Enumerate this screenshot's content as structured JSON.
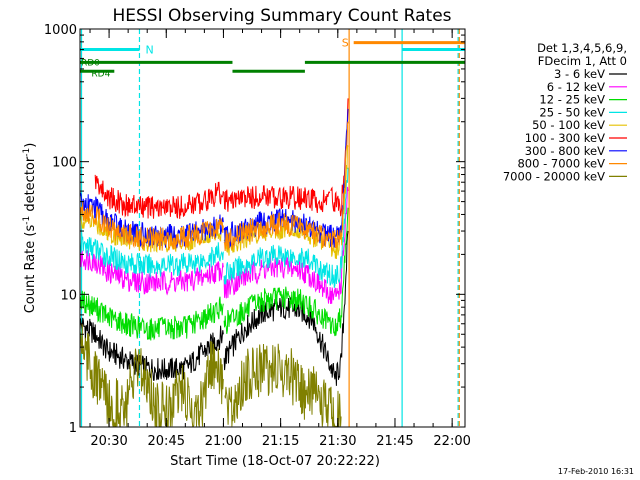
{
  "chart_data": {
    "type": "line",
    "title": "HESSI Observing Summary Count Rates",
    "xlabel": "Start Time (18-Oct-07 20:22:22)",
    "ylabel": "Count Rate (s⁻¹ detector⁻¹)",
    "ylabel_parts": {
      "pre": "Count Rate (s",
      "sup1": "-1",
      "mid": " detector",
      "sup2": "-1",
      "post": ")"
    },
    "x_tick_labels": [
      "20:30",
      "20:45",
      "21:00",
      "21:15",
      "21:30",
      "21:45",
      "22:00"
    ],
    "x_tick_minutes": [
      7.63,
      22.63,
      37.63,
      52.63,
      67.63,
      82.63,
      97.63
    ],
    "xlim_minutes": [
      0,
      101
    ],
    "y_scale": "log",
    "ylim": [
      1,
      1000
    ],
    "y_tick_labels": [
      "1",
      "10",
      "100",
      "1000"
    ],
    "y_tick_values": [
      1,
      10,
      100,
      1000
    ],
    "legend_header": [
      "Det 1,3,4,5,6,9,",
      "FDecim 1, Att 0"
    ],
    "series": [
      {
        "name": "3 - 6 keV",
        "color": "#000000",
        "segments": [
          [
            [
              0,
              6
            ],
            [
              4,
              5
            ],
            [
              7,
              3.8
            ],
            [
              12,
              3.2
            ],
            [
              17,
              2.8
            ],
            [
              22,
              2.7
            ],
            [
              28,
              2.8
            ],
            [
              32,
              3.6
            ],
            [
              36,
              4.5
            ],
            [
              37.6,
              5
            ]
          ],
          [
            [
              37.8,
              3.2
            ],
            [
              43,
              5.5
            ],
            [
              48,
              7.2
            ],
            [
              53,
              8
            ],
            [
              58,
              7.5
            ],
            [
              61,
              6.5
            ],
            [
              63.5,
              4.2
            ],
            [
              67,
              2.3
            ],
            [
              68.5,
              3
            ],
            [
              69.5,
              10
            ],
            [
              70.3,
              30
            ]
          ]
        ]
      },
      {
        "name": "6 - 12 keV",
        "color": "#ff00ff",
        "segments": [
          [
            [
              0,
              19
            ],
            [
              4,
              18
            ],
            [
              7,
              15
            ],
            [
              12,
              13
            ],
            [
              17,
              12.3
            ],
            [
              22,
              12.3
            ],
            [
              28,
              12.5
            ],
            [
              32,
              13.5
            ],
            [
              36,
              15
            ],
            [
              37.6,
              16
            ]
          ],
          [
            [
              37.8,
              11
            ],
            [
              43,
              13.5
            ],
            [
              48,
              15.5
            ],
            [
              53,
              16.2
            ],
            [
              58,
              15.3
            ],
            [
              61,
              13.5
            ],
            [
              63.5,
              11
            ],
            [
              67,
              9.5
            ],
            [
              68.5,
              12
            ],
            [
              69.5,
              30
            ],
            [
              70.3,
              60
            ]
          ]
        ]
      },
      {
        "name": "12 - 25 keV",
        "color": "#00dd00",
        "segments": [
          [
            [
              0,
              9
            ],
            [
              4,
              8
            ],
            [
              7,
              6.8
            ],
            [
              12,
              6
            ],
            [
              17,
              5.5
            ],
            [
              22,
              5.5
            ],
            [
              28,
              5.7
            ],
            [
              32,
              6.5
            ],
            [
              36,
              7.6
            ],
            [
              37.6,
              8.5
            ]
          ],
          [
            [
              37.8,
              6
            ],
            [
              43,
              7.5
            ],
            [
              48,
              9
            ],
            [
              53,
              9.5
            ],
            [
              58,
              9
            ],
            [
              61,
              7.8
            ],
            [
              63.5,
              6.5
            ],
            [
              67,
              5.5
            ],
            [
              68.5,
              7
            ],
            [
              69.5,
              20
            ],
            [
              70.3,
              45
            ]
          ]
        ]
      },
      {
        "name": "25 - 50 keV",
        "color": "#00e5e5",
        "segments": [
          [
            [
              0,
              24
            ],
            [
              4,
              22
            ],
            [
              7,
              19.5
            ],
            [
              12,
              17.5
            ],
            [
              17,
              16.5
            ],
            [
              22,
              16.5
            ],
            [
              28,
              17
            ],
            [
              32,
              18
            ],
            [
              36,
              20
            ],
            [
              37.6,
              21
            ]
          ],
          [
            [
              37.8,
              14
            ],
            [
              43,
              16.5
            ],
            [
              48,
              19
            ],
            [
              53,
              19.8
            ],
            [
              58,
              19
            ],
            [
              61,
              17.5
            ],
            [
              63.5,
              15
            ],
            [
              67,
              13.5
            ],
            [
              68.5,
              16
            ],
            [
              69.5,
              40
            ],
            [
              70.3,
              90
            ]
          ]
        ]
      },
      {
        "name": "50 - 100 keV",
        "color": "#e5c000",
        "segments": [
          [
            [
              0,
              37
            ],
            [
              4,
              35
            ],
            [
              7,
              30
            ],
            [
              12,
              27
            ],
            [
              17,
              25.5
            ],
            [
              22,
              25.5
            ],
            [
              28,
              26
            ],
            [
              32,
              27.5
            ],
            [
              36,
              30
            ],
            [
              37.6,
              31
            ]
          ],
          [
            [
              37.8,
              23
            ],
            [
              43,
              27
            ],
            [
              48,
              31
            ],
            [
              53,
              32
            ],
            [
              58,
              31
            ],
            [
              61,
              28
            ],
            [
              63.5,
              25
            ],
            [
              67,
              22
            ],
            [
              68.5,
              25
            ],
            [
              69.5,
              60
            ],
            [
              70.3,
              130
            ]
          ]
        ]
      },
      {
        "name": "100 - 300 keV",
        "color": "#ff0000",
        "segments": [
          [
            [
              4,
              72
            ],
            [
              7,
              55
            ],
            [
              12,
              47
            ],
            [
              17,
              45
            ],
            [
              22,
              44.5
            ],
            [
              28,
              46
            ],
            [
              32,
              50
            ],
            [
              36,
              57
            ],
            [
              37.6,
              60
            ]
          ],
          [
            [
              37.8,
              50
            ],
            [
              43,
              53
            ],
            [
              48,
              55
            ],
            [
              53,
              54
            ],
            [
              58,
              53
            ],
            [
              61,
              51
            ],
            [
              63.5,
              49
            ],
            [
              65.5,
              58
            ]
          ],
          [
            [
              65.8,
              55
            ],
            [
              67,
              50
            ],
            [
              68.5,
              47
            ],
            [
              69.5,
              80
            ],
            [
              70.3,
              300
            ]
          ]
        ]
      },
      {
        "name": "300 - 800 keV",
        "color": "#0000ff",
        "segments": [
          [
            [
              0,
              50
            ],
            [
              4,
              45
            ],
            [
              7,
              36
            ],
            [
              12,
              30
            ],
            [
              17,
              28
            ],
            [
              22,
              27.5
            ],
            [
              28,
              28
            ],
            [
              32,
              30.5
            ],
            [
              36,
              33
            ],
            [
              37.6,
              35
            ]
          ],
          [
            [
              37.8,
              27
            ],
            [
              43,
              31
            ],
            [
              48,
              35
            ],
            [
              53,
              37
            ],
            [
              58,
              35
            ],
            [
              61,
              32
            ],
            [
              63.5,
              29
            ],
            [
              67,
              27
            ],
            [
              68.5,
              30
            ],
            [
              69.5,
              80
            ],
            [
              70.3,
              250
            ]
          ]
        ]
      },
      {
        "name": "800 - 7000 keV",
        "color": "#ff8800",
        "segments": [
          [
            [
              0,
              44
            ],
            [
              4,
              40
            ],
            [
              7,
              33
            ],
            [
              12,
              28
            ],
            [
              17,
              26.5
            ],
            [
              22,
              26
            ],
            [
              28,
              27
            ],
            [
              32,
              29
            ],
            [
              36,
              32
            ],
            [
              37.6,
              33
            ]
          ],
          [
            [
              37.8,
              25
            ],
            [
              43,
              29
            ],
            [
              48,
              32.5
            ],
            [
              53,
              34
            ],
            [
              58,
              32.5
            ],
            [
              61,
              29.5
            ],
            [
              63.5,
              27
            ],
            [
              67,
              25.5
            ],
            [
              68.5,
              28
            ],
            [
              69.5,
              70
            ],
            [
              70.3,
              200
            ]
          ]
        ]
      },
      {
        "name": "7000 - 20000 keV",
        "color": "#808000",
        "segments": [
          [
            [
              0,
              5.2
            ],
            [
              2,
              3.5
            ],
            [
              4,
              2.3
            ],
            [
              6,
              2
            ],
            [
              8,
              1.3
            ],
            [
              10,
              1.6
            ],
            [
              12,
              1.3
            ],
            [
              14,
              2.3
            ],
            [
              16,
              2.5
            ],
            [
              18,
              2.3
            ],
            [
              20,
              1.3
            ],
            [
              22,
              1.5
            ],
            [
              24,
              1.3
            ],
            [
              26,
              2.2
            ],
            [
              28,
              1.5
            ],
            [
              30,
              1.3
            ],
            [
              32,
              1.4
            ],
            [
              34,
              2.8
            ],
            [
              36,
              2.5
            ],
            [
              37.6,
              2.3
            ]
          ],
          [
            [
              38,
              1.2
            ],
            [
              40,
              1.3
            ],
            [
              42,
              2.1
            ],
            [
              45,
              2.6
            ],
            [
              48,
              2.9
            ],
            [
              51,
              2.6
            ],
            [
              54,
              2.7
            ],
            [
              57,
              2.2
            ],
            [
              59,
              1.5
            ],
            [
              61,
              2
            ],
            [
              63,
              1.3
            ],
            [
              65,
              1.5
            ],
            [
              67,
              1.1
            ],
            [
              68.5,
              1.2
            ]
          ]
        ]
      }
    ],
    "mode_bars": {
      "eclipse": {
        "label": "N",
        "color": "#00e5e5",
        "y": 700,
        "segments": [
          [
            0,
            15.6
          ]
        ]
      },
      "saa": {
        "label": "S",
        "color": "#ff8800",
        "y": 790,
        "segments": [
          [
            71.8,
            101
          ]
        ]
      },
      "cyan_upper": {
        "color": "#00e5e5",
        "y": 700,
        "segments": [
          [
            84.5,
            101
          ]
        ]
      },
      "rd_track": {
        "color": "#008000",
        "labels": [
          "RD0",
          "RD4"
        ],
        "upper": {
          "y": 560,
          "segments": [
            [
              0,
              40
            ],
            [
              59,
              101
            ]
          ]
        },
        "lower": {
          "y": 480,
          "segments": [
            [
              0,
              9
            ],
            [
              40,
              59
            ]
          ]
        }
      }
    },
    "vertical_markers": [
      {
        "x": 0.4,
        "color": "#00e5e5",
        "style": "solid"
      },
      {
        "x": 15.6,
        "color": "#00e5e5",
        "style": "dashed"
      },
      {
        "x": 70.6,
        "color": "#ff8800",
        "style": "solid"
      },
      {
        "x": 84.5,
        "color": "#00e5e5",
        "style": "solid"
      },
      {
        "x": 99.2,
        "color": "#00e5e5",
        "style": "dashed"
      },
      {
        "x": 99.5,
        "color": "#ff8800",
        "style": "dashed"
      }
    ],
    "legend_placement": "right",
    "grid": false
  },
  "footer": {
    "stamp": "17-Feb-2010 16:31"
  }
}
